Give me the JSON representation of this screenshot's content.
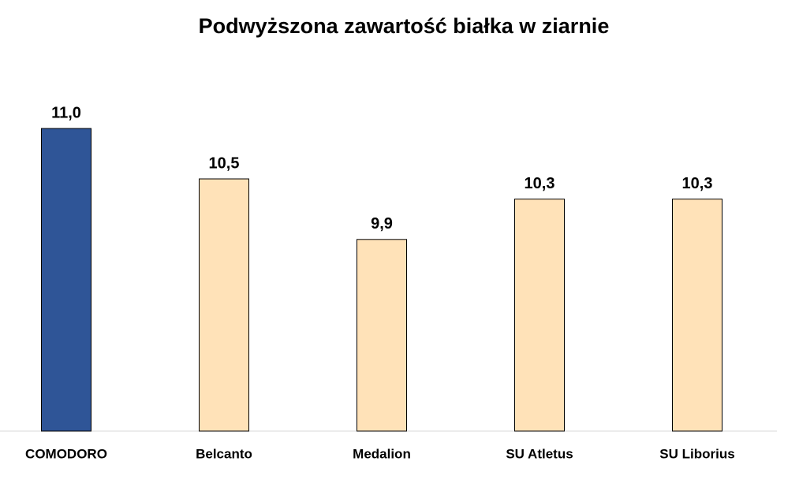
{
  "chart_data": {
    "type": "bar",
    "title": "Podwyższona zawartość białka w ziarnie",
    "categories": [
      "COMODORO",
      "Belcanto",
      "Medalion",
      "SU Atletus",
      "SU Liborius"
    ],
    "values": [
      11.0,
      10.5,
      9.9,
      10.3,
      10.3
    ],
    "value_labels": [
      "11,0",
      "10,5",
      "9,9",
      "10,3",
      "10,3"
    ],
    "colors": [
      "#2f5597",
      "#ffe2b8",
      "#ffe2b8",
      "#ffe2b8",
      "#ffe2b8"
    ],
    "ylim": [
      8,
      11.5
    ]
  }
}
